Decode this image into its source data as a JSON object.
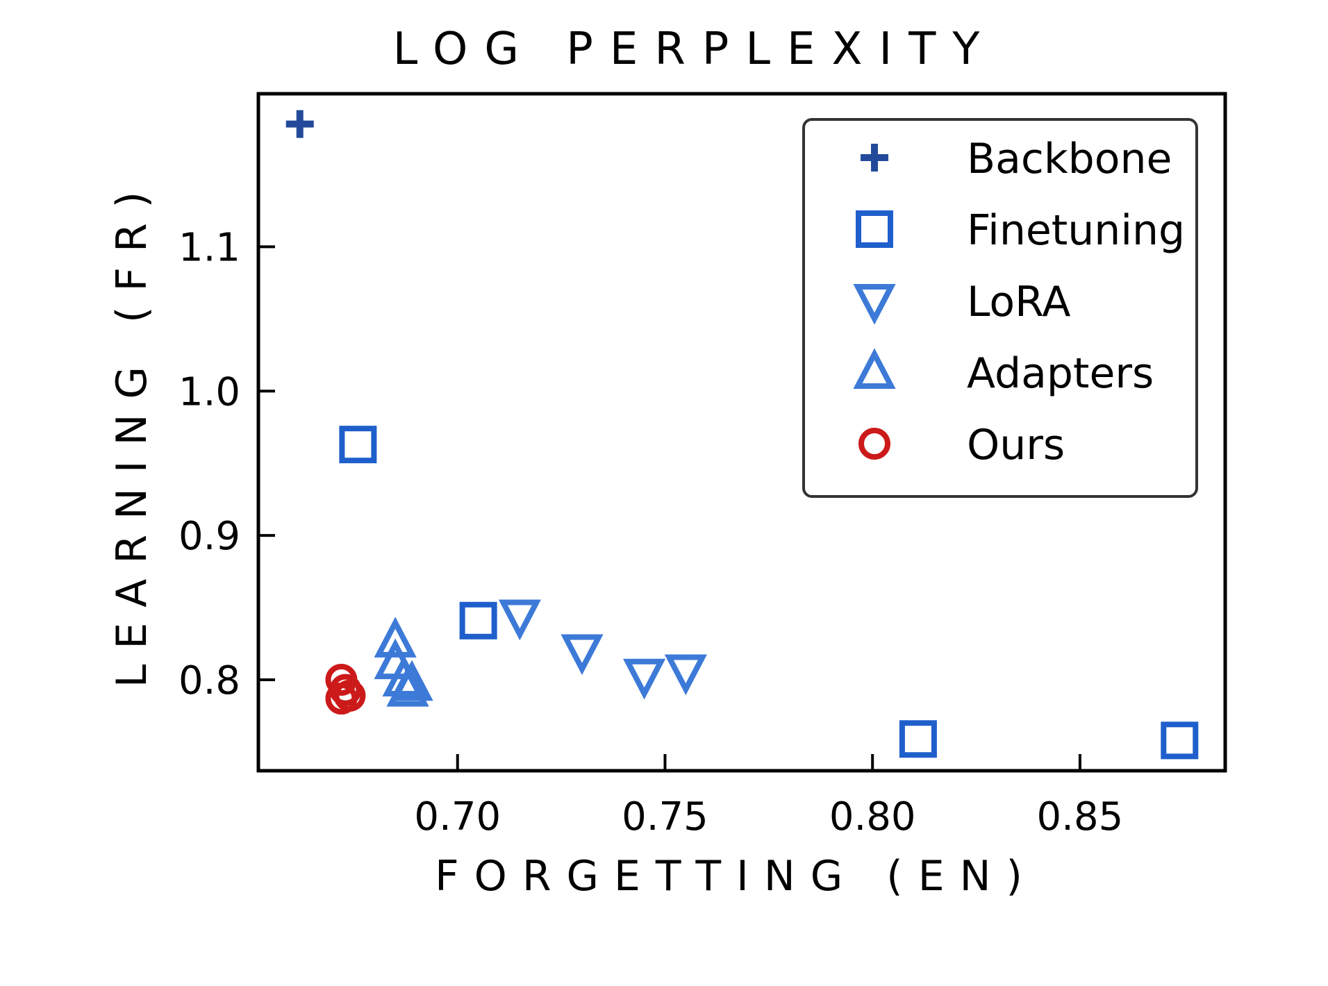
{
  "chart_data": {
    "type": "scatter",
    "title": "LOG PERPLEXITY",
    "xlabel": "FORGETTING (EN)",
    "ylabel": "LEARNING (FR)",
    "xlim": [
      0.652,
      0.885
    ],
    "ylim": [
      0.737,
      1.206
    ],
    "xticks": [
      {
        "value": 0.7,
        "label": "0.70"
      },
      {
        "value": 0.75,
        "label": "0.75"
      },
      {
        "value": 0.8,
        "label": "0.80"
      },
      {
        "value": 0.85,
        "label": "0.85"
      }
    ],
    "yticks": [
      {
        "value": 0.8,
        "label": "0.8"
      },
      {
        "value": 0.9,
        "label": "0.9"
      },
      {
        "value": 1.0,
        "label": "1.0"
      },
      {
        "value": 1.1,
        "label": "1.1"
      }
    ],
    "legend_position": "top-right",
    "grid": false,
    "series": [
      {
        "name": "Backbone",
        "marker": "plus",
        "color": "#234a9a",
        "points": [
          {
            "x": 0.662,
            "y": 1.185
          }
        ]
      },
      {
        "name": "Finetuning",
        "marker": "square",
        "color": "#1f5fcc",
        "points": [
          {
            "x": 0.676,
            "y": 0.963
          },
          {
            "x": 0.705,
            "y": 0.841
          },
          {
            "x": 0.811,
            "y": 0.759
          },
          {
            "x": 0.874,
            "y": 0.758
          }
        ]
      },
      {
        "name": "LoRA",
        "marker": "triangle-down",
        "color": "#3d7ad8",
        "points": [
          {
            "x": 0.715,
            "y": 0.844
          },
          {
            "x": 0.73,
            "y": 0.82
          },
          {
            "x": 0.745,
            "y": 0.803
          },
          {
            "x": 0.755,
            "y": 0.806
          }
        ]
      },
      {
        "name": "Adapters",
        "marker": "triangle-up",
        "color": "#3d7ad8",
        "points": [
          {
            "x": 0.685,
            "y": 0.827
          },
          {
            "x": 0.685,
            "y": 0.812
          },
          {
            "x": 0.687,
            "y": 0.8
          },
          {
            "x": 0.689,
            "y": 0.797
          },
          {
            "x": 0.688,
            "y": 0.793
          }
        ]
      },
      {
        "name": "Ours",
        "marker": "circle",
        "color": "#cc1a1a",
        "points": [
          {
            "x": 0.672,
            "y": 0.8
          },
          {
            "x": 0.673,
            "y": 0.793
          },
          {
            "x": 0.672,
            "y": 0.787
          },
          {
            "x": 0.674,
            "y": 0.789
          }
        ]
      }
    ]
  }
}
